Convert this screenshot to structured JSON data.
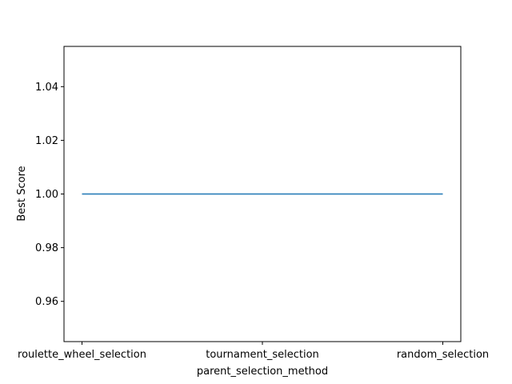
{
  "chart_data": {
    "type": "line",
    "title": "",
    "xlabel": "parent_selection_method",
    "ylabel": "Best Score",
    "categories": [
      "roulette_wheel_selection",
      "tournament_selection",
      "random_selection"
    ],
    "series": [
      {
        "values": [
          1.0,
          1.0,
          1.0
        ],
        "color": "#1f77b4"
      }
    ],
    "ylim": [
      0.945,
      1.055
    ],
    "yticks": [
      0.96,
      0.98,
      1.0,
      1.02,
      1.04
    ],
    "ytick_labels": [
      "0.96",
      "0.98",
      "1.00",
      "1.02",
      "1.04"
    ],
    "grid": false,
    "legend": "none"
  }
}
